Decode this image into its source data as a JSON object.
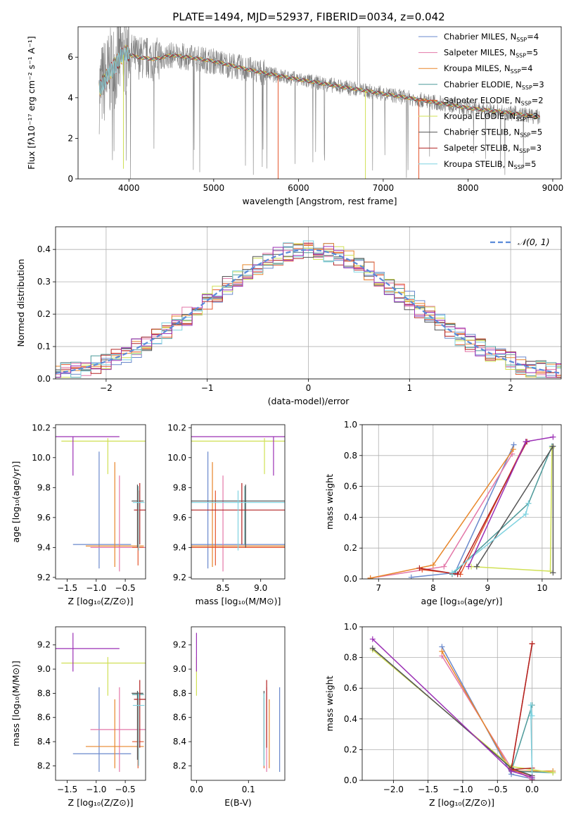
{
  "figure": {
    "title": "PLATE=1494, MJD=52937, FIBERID=0034, z=0.042"
  },
  "models": [
    {
      "name": "Chabrier MILES",
      "nssp": "4",
      "color": "#6a89cc",
      "ebv": 0.16,
      "age": [
        9.42,
        10.04,
        9.26
      ],
      "mass": [
        8.3,
        8.85,
        8.15
      ],
      "Z": [
        -0.95,
        0.45,
        0.55
      ],
      "weights": [
        [
          7.6,
          0.01
        ],
        [
          8.4,
          0.04
        ],
        [
          9.48,
          0.87
        ]
      ],
      "wZ": [
        [
          -1.3,
          0.87
        ],
        [
          -0.3,
          0.04
        ],
        [
          0.0,
          0.01
        ]
      ]
    },
    {
      "name": "Salpeter MILES",
      "nssp": "5",
      "color": "#e377a8",
      "ebv": 0.135,
      "age": [
        9.4,
        9.88,
        9.24
      ],
      "mass": [
        8.5,
        8.85,
        8.15
      ],
      "Z": [
        -0.6,
        0.5,
        0.45
      ],
      "weights": [
        [
          6.85,
          0.005
        ],
        [
          8.2,
          0.08
        ],
        [
          9.45,
          0.81
        ]
      ],
      "wZ": [
        [
          -1.3,
          0.81
        ],
        [
          -0.3,
          0.08
        ],
        [
          0.0,
          0.005
        ]
      ]
    },
    {
      "name": "Kroupa MILES",
      "nssp": "4",
      "color": "#e8862a",
      "ebv": 0.14,
      "age": [
        9.41,
        9.97,
        9.27
      ],
      "mass": [
        8.36,
        8.75,
        8.18
      ],
      "Z": [
        -0.68,
        0.5,
        0.5
      ],
      "weights": [
        [
          6.85,
          0.005
        ],
        [
          8.0,
          0.09
        ],
        [
          9.47,
          0.84
        ]
      ],
      "wZ": [
        [
          -1.3,
          0.84
        ],
        [
          -0.3,
          0.06
        ],
        [
          0.3,
          0.06
        ]
      ]
    },
    {
      "name": "Chabrier ELODIE",
      "nssp": "3",
      "color": "#4d9a9a",
      "ebv": 0.13,
      "age": [
        9.71,
        9.81,
        9.42
      ],
      "mass": [
        8.79,
        8.81,
        8.2
      ],
      "Z": [
        -0.28,
        0.1,
        0.1
      ],
      "weights": [
        [
          8.35,
          0.03
        ],
        [
          9.75,
          0.49
        ],
        [
          10.18,
          0.86
        ]
      ],
      "wZ": [
        [
          -0.0,
          0.49
        ],
        [
          -0.3,
          0.06
        ],
        [
          0.3,
          0.05
        ]
      ]
    },
    {
      "name": "Salpeter ELODIE",
      "nssp": "2",
      "color": "#e4572e",
      "ebv": 0.13,
      "age": [
        9.4,
        9.78,
        9.28
      ],
      "mass": [
        8.4,
        8.76,
        8.18
      ],
      "Z": [
        -0.28,
        0.1,
        0.1
      ],
      "weights": [
        [
          7.8,
          0.06
        ],
        [
          8.5,
          0.03
        ],
        [
          9.7,
          0.89
        ]
      ],
      "wZ": [
        [
          0.0,
          0.89
        ],
        [
          -0.3,
          0.07
        ],
        [
          0.0,
          0.03
        ]
      ]
    },
    {
      "name": "Kroupa ELODIE",
      "nssp": "3",
      "color": "#d0e055",
      "ebv": 0.0,
      "age": [
        10.11,
        10.13,
        9.89
      ],
      "mass": [
        9.05,
        9.1,
        8.78
      ],
      "Z": [
        -0.8,
        0.8,
        0.8
      ],
      "weights": [
        [
          8.7,
          0.08
        ],
        [
          10.15,
          0.05
        ],
        [
          10.18,
          0.85
        ]
      ],
      "wZ": [
        [
          -2.3,
          0.85
        ],
        [
          -0.3,
          0.09
        ],
        [
          0.3,
          0.05
        ]
      ]
    },
    {
      "name": "Chabrier STELIB",
      "nssp": "5",
      "color": "#555555",
      "ebv": 0.13,
      "age": [
        9.71,
        9.82,
        9.4
      ],
      "mass": [
        8.8,
        8.82,
        8.25
      ],
      "Z": [
        -0.29,
        0.1,
        0.1
      ],
      "weights": [
        [
          8.8,
          0.08
        ],
        [
          10.2,
          0.86
        ],
        [
          10.2,
          0.04
        ]
      ],
      "wZ": [
        [
          -2.3,
          0.86
        ],
        [
          -0.3,
          0.08
        ],
        [
          0.0,
          0.03
        ]
      ]
    },
    {
      "name": "Salpeter STELIB",
      "nssp": "3",
      "color": "#b22222",
      "ebv": 0.135,
      "age": [
        9.65,
        9.83,
        9.42
      ],
      "mass": [
        8.75,
        8.91,
        8.35
      ],
      "Z": [
        -0.25,
        0.1,
        0.1
      ],
      "weights": [
        [
          7.75,
          0.07
        ],
        [
          8.45,
          0.03
        ],
        [
          9.72,
          0.89
        ]
      ],
      "wZ": [
        [
          -0.0,
          0.89
        ],
        [
          -0.3,
          0.07
        ],
        [
          0.0,
          0.08
        ]
      ]
    },
    {
      "name": "Kroupa STELIB",
      "nssp": "5",
      "color": "#7fd3e0",
      "ebv": 0.13,
      "age": [
        9.7,
        9.78,
        9.38
      ],
      "mass": [
        8.7,
        8.8,
        8.2
      ],
      "Z": [
        -0.27,
        0.1,
        0.1
      ],
      "weights": [
        [
          8.35,
          0.04
        ],
        [
          9.7,
          0.42
        ],
        [
          9.75,
          0.49
        ]
      ],
      "wZ": [
        [
          0.0,
          0.42
        ],
        [
          -0.02,
          0.49
        ],
        [
          0.0,
          0.02
        ]
      ]
    }
  ],
  "extra_points": {
    "purple": {
      "color": "#9b30b5",
      "age": [
        10.14,
        10.14,
        9.88
      ],
      "mass": [
        9.17,
        9.3,
        8.98
      ],
      "Z": [
        -1.4,
        0.8,
        0.8
      ],
      "ebv": 0.0
    }
  },
  "chart_data": [
    {
      "type": "line",
      "id": "spectrum",
      "xlabel": "wavelength [Angstrom, rest frame]",
      "ylabel": "Flux [fλ10⁻¹⁷ erg cm⁻² s⁻¹ A⁻¹]",
      "xlim": [
        3400,
        9100
      ],
      "ylim": [
        0,
        7.5
      ],
      "xticks": [
        4000,
        5000,
        6000,
        7000,
        8000,
        9000
      ],
      "yticks": [
        0,
        2,
        4,
        6
      ],
      "data_range": [
        3650,
        8850
      ],
      "continuum": [
        [
          3650,
          4.4
        ],
        [
          3800,
          5.4
        ],
        [
          3950,
          6.2
        ],
        [
          4100,
          6.0
        ],
        [
          4300,
          5.9
        ],
        [
          4500,
          6.1
        ],
        [
          4700,
          6.0
        ],
        [
          5000,
          5.8
        ],
        [
          5500,
          5.3
        ],
        [
          6000,
          4.9
        ],
        [
          6500,
          4.55
        ],
        [
          7000,
          4.2
        ],
        [
          7500,
          3.85
        ],
        [
          8000,
          3.5
        ],
        [
          8500,
          3.25
        ],
        [
          8850,
          3.05
        ]
      ]
    },
    {
      "type": "line",
      "id": "residuals",
      "xlabel": "(data-model)/error",
      "ylabel": "Normed distribution",
      "xlim": [
        -2.5,
        2.5
      ],
      "ylim": [
        0,
        0.47
      ],
      "xticks": [
        -2,
        -1,
        0,
        1,
        2
      ],
      "yticks": [
        0.0,
        0.1,
        0.2,
        0.3,
        0.4
      ],
      "legend": "𝒩(0, 1)",
      "bin_width": 0.1
    },
    {
      "type": "scatter",
      "id": "age-vs-Z",
      "xlabel": "Z [log₁₀(Z/Z⊙)]",
      "ylabel": "age  [log₁₀(age/yr)]",
      "xlim": [
        -1.7,
        -0.15
      ],
      "ylim": [
        9.19,
        10.22
      ],
      "xticks": [
        -1.5,
        -1.0,
        -0.5
      ],
      "yticks": [
        9.2,
        9.4,
        9.6,
        9.8,
        10.0,
        10.2
      ]
    },
    {
      "type": "scatter",
      "id": "age-vs-mass",
      "xlabel": "mass [log₁₀(M/M⊙)]",
      "ylabel": "",
      "xlim": [
        8.08,
        9.32
      ],
      "ylim": [
        9.19,
        10.22
      ],
      "xticks": [
        8.5,
        9.0
      ],
      "yticks": [
        9.2,
        9.4,
        9.6,
        9.8,
        10.0,
        10.2
      ]
    },
    {
      "type": "line",
      "id": "weight-vs-age",
      "xlabel": "age  [log₁₀(age/yr)]",
      "ylabel": "mass weight",
      "xlim": [
        6.7,
        10.35
      ],
      "ylim": [
        0,
        1.0
      ],
      "xticks": [
        7,
        8,
        9,
        10
      ],
      "yticks": [
        0.0,
        0.2,
        0.4,
        0.6,
        0.8,
        1.0
      ]
    },
    {
      "type": "scatter",
      "id": "mass-vs-Z",
      "xlabel": "Z [log₁₀(Z/Z⊙)]",
      "ylabel": "mass [log₁₀(M/M⊙)]",
      "xlim": [
        -1.7,
        -0.15
      ],
      "ylim": [
        8.08,
        9.35
      ],
      "xticks": [
        -1.5,
        -1.0,
        -0.5
      ],
      "yticks": [
        8.2,
        8.4,
        8.6,
        8.8,
        9.0,
        9.2
      ]
    },
    {
      "type": "scatter",
      "id": "mass-vs-ebv",
      "xlabel": "E(B-V)",
      "ylabel": "",
      "xlim": [
        -0.01,
        0.17
      ],
      "ylim": [
        8.08,
        9.35
      ],
      "xticks": [
        0.0,
        0.1
      ],
      "yticks": [
        8.2,
        8.4,
        8.6,
        8.8,
        9.0,
        9.2
      ]
    },
    {
      "type": "line",
      "id": "weight-vs-Z",
      "xlabel": "Z [log₁₀(Z/Z⊙)]",
      "ylabel": "mass weight",
      "xlim": [
        -2.45,
        0.42
      ],
      "ylim": [
        0,
        1.0
      ],
      "xticks": [
        -2.0,
        -1.5,
        -1.0,
        -0.5,
        0.0
      ],
      "yticks": [
        0.0,
        0.2,
        0.4,
        0.6,
        0.8,
        1.0
      ]
    }
  ]
}
